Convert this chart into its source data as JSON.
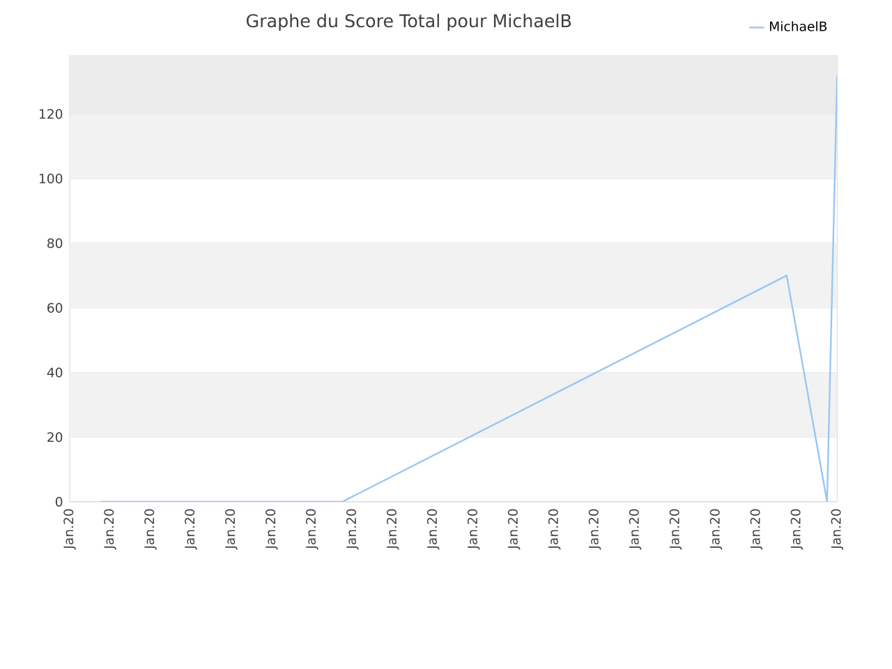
{
  "chart_data": {
    "type": "line",
    "title": "Graphe du Score Total pour MichaelB",
    "categories": [
      "Jan.20",
      null,
      null,
      null,
      "Jan.20",
      null,
      null,
      null,
      "Jan.20",
      null,
      null,
      null,
      "Jan.20",
      null,
      null,
      null,
      "Jan.20",
      null,
      null,
      null,
      "Jan.20",
      null,
      null,
      null,
      "Jan.20",
      null,
      null,
      null,
      "Jan.20",
      null,
      null,
      null,
      "Jan.20",
      null,
      null,
      null,
      "Jan.20",
      null,
      null,
      null,
      "Jan.20",
      null,
      null,
      null,
      "Jan.20",
      null,
      null,
      null,
      "Jan.20",
      null,
      null,
      null,
      "Jan.20",
      null,
      null,
      null,
      "Jan.20",
      null,
      null,
      null,
      "Jan.20",
      null,
      null,
      null,
      "Jan.20",
      null,
      null,
      null,
      "Jan.20",
      null,
      null,
      null,
      "Jan.20",
      null,
      null,
      null,
      "Jan.20"
    ],
    "ylim": [
      0,
      138
    ],
    "yticks": [
      0,
      20,
      40,
      60,
      80,
      100,
      120
    ],
    "grid": "y",
    "legend": "top right",
    "marker": "none",
    "line_style": "solid",
    "bands": [
      {
        "axis": "y",
        "from": 20,
        "to": 40,
        "color": "#f2f2f2"
      },
      {
        "axis": "y",
        "from": 60,
        "to": 80,
        "color": "#f2f2f2"
      },
      {
        "axis": "y",
        "from": 100,
        "to": 120,
        "color": "#f2f2f2"
      },
      {
        "axis": "y",
        "from": 120,
        "to": 138,
        "color": "#ececec"
      }
    ],
    "series": [
      {
        "name": "MichaelB",
        "color": "#99c6f5",
        "values": [
          null,
          null,
          null,
          0,
          null,
          null,
          null,
          null,
          null,
          null,
          null,
          null,
          null,
          null,
          null,
          null,
          null,
          null,
          null,
          null,
          null,
          null,
          null,
          null,
          null,
          null,
          null,
          0,
          null,
          null,
          null,
          null,
          null,
          null,
          null,
          null,
          null,
          null,
          null,
          null,
          null,
          null,
          null,
          null,
          null,
          null,
          null,
          null,
          null,
          35,
          null,
          null,
          null,
          null,
          null,
          null,
          null,
          null,
          null,
          null,
          null,
          null,
          null,
          null,
          null,
          null,
          null,
          null,
          null,
          null,
          null,
          70,
          null,
          null,
          null,
          0,
          132
        ]
      }
    ]
  }
}
